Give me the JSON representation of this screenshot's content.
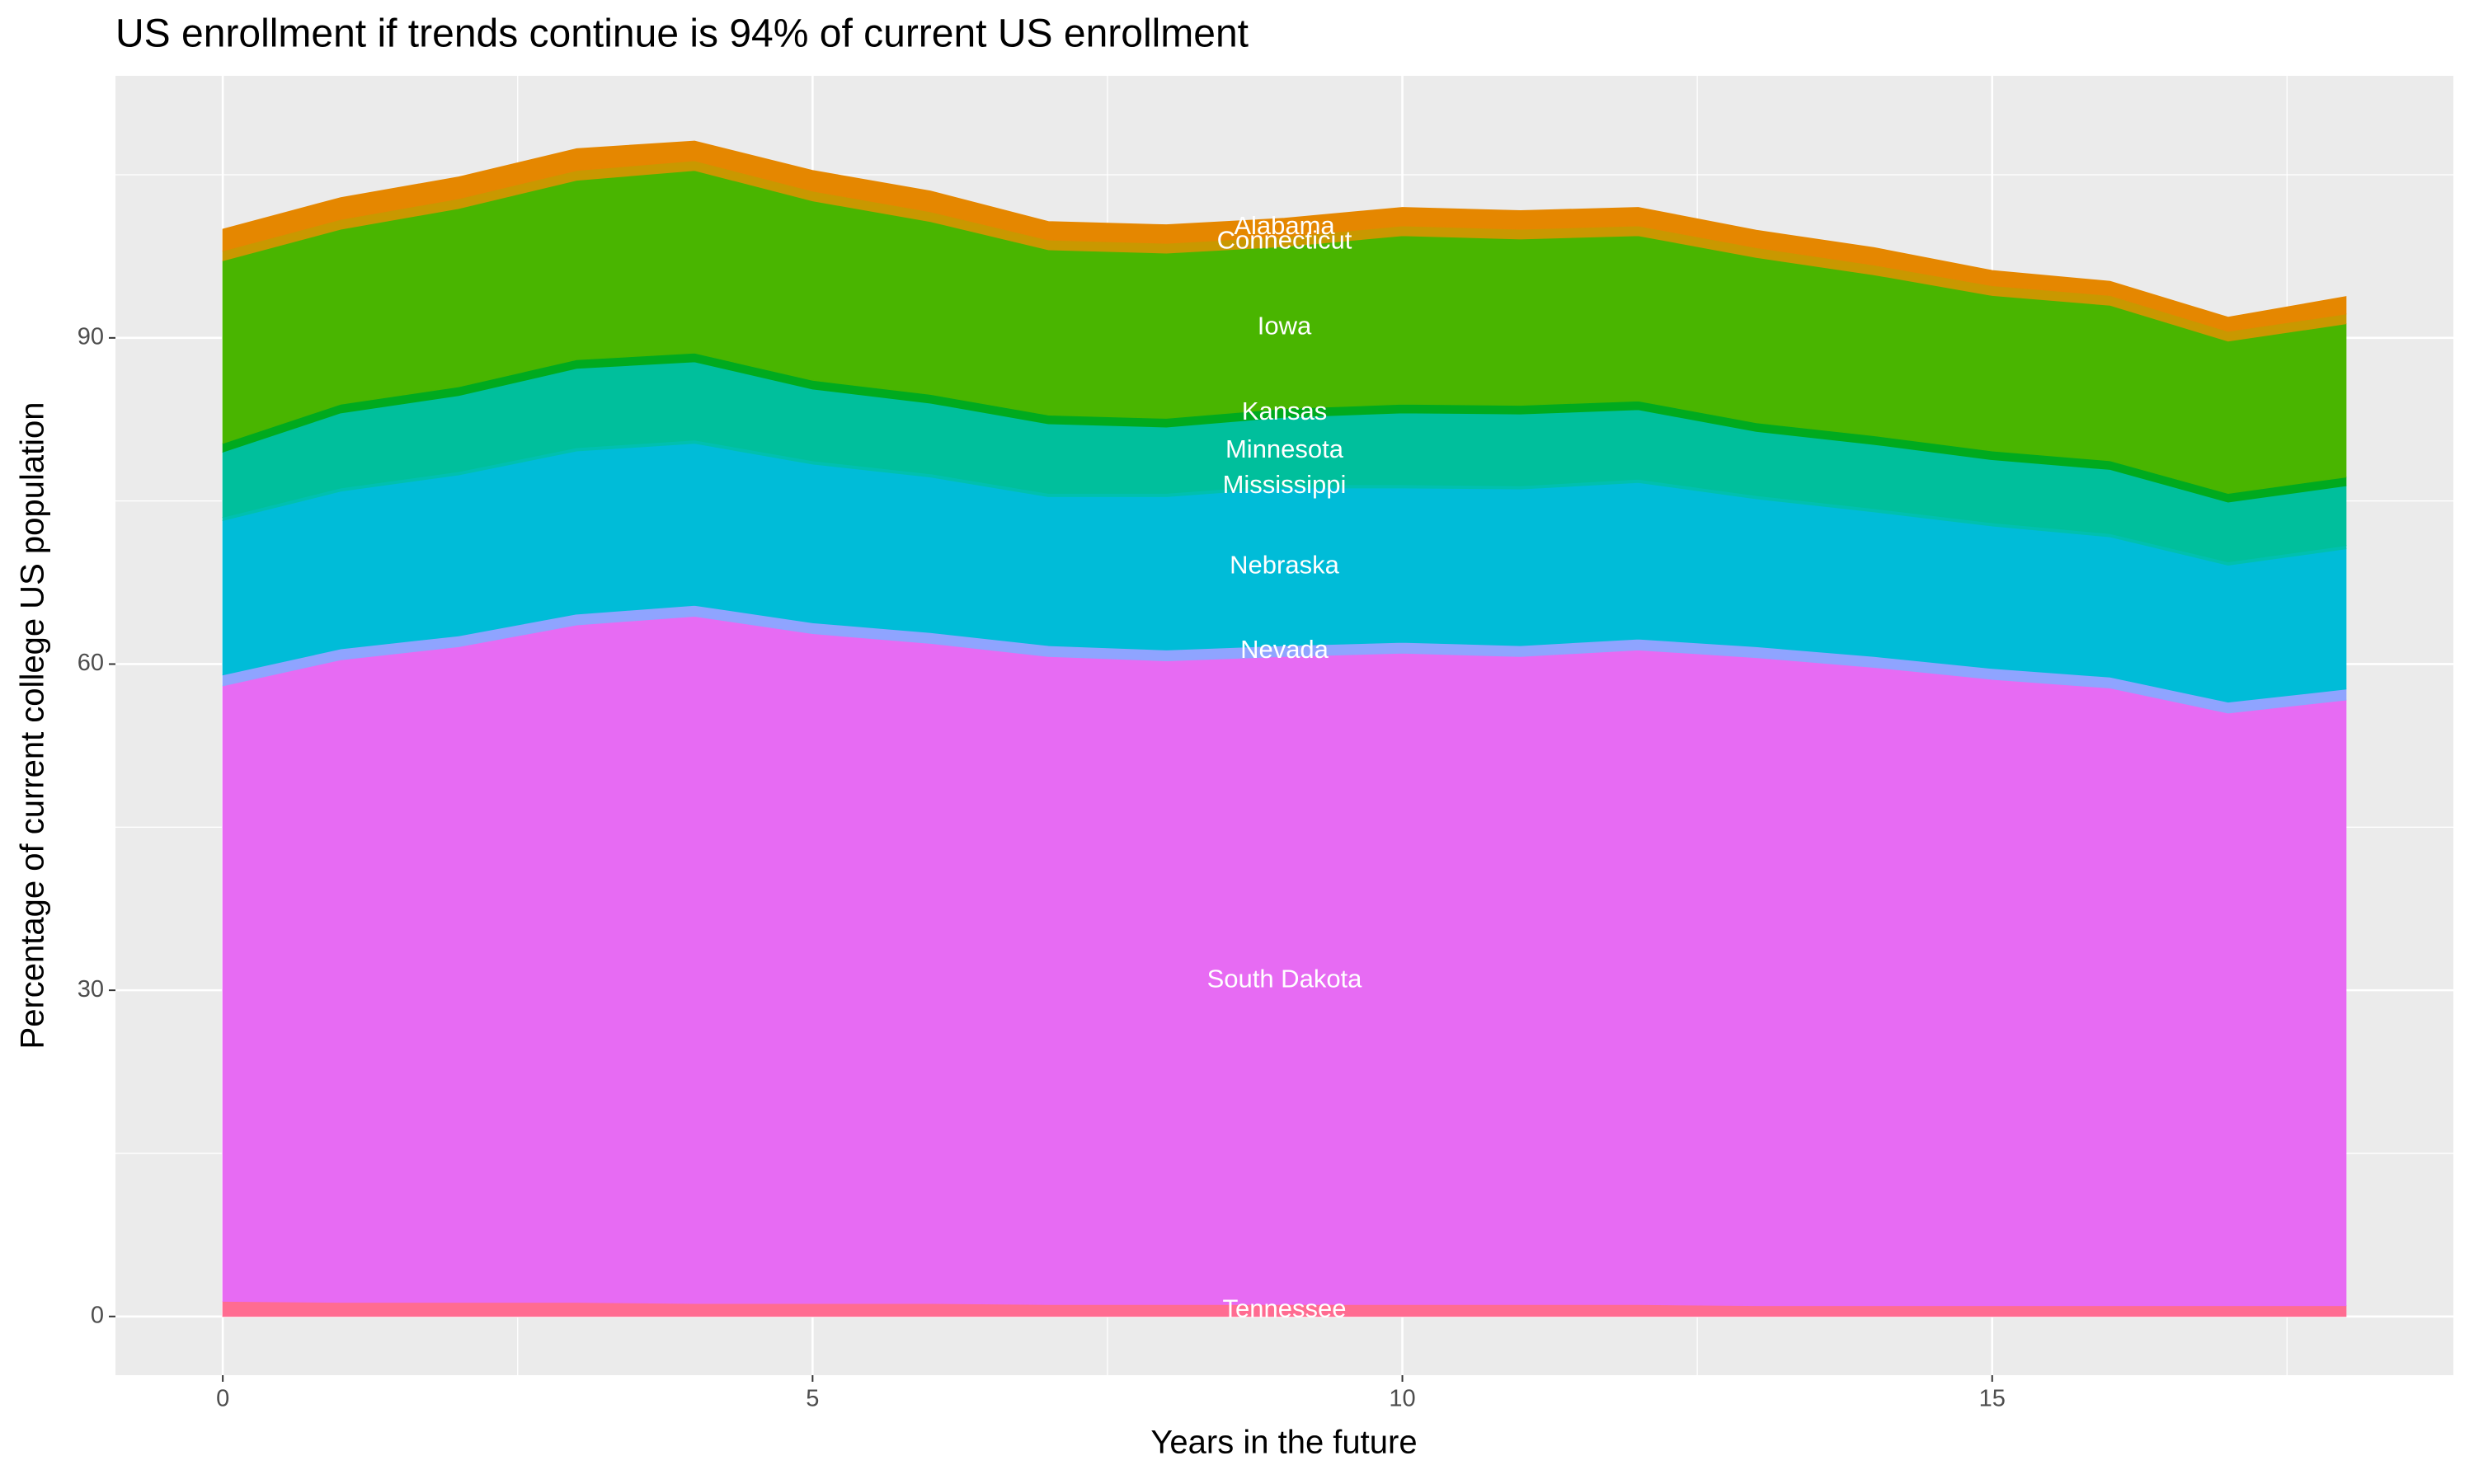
{
  "chart_data": {
    "type": "stacked_area",
    "title": "US enrollment if trends continue is 94% of current US enrollment",
    "x_label": "Years in the future",
    "y_label": "Percentage of current college US population",
    "x": [
      0,
      1,
      2,
      3,
      4,
      5,
      6,
      7,
      8,
      9,
      10,
      11,
      12,
      13,
      14,
      15,
      16,
      17,
      18
    ],
    "xlim": [
      -0.91,
      18.91
    ],
    "xticks": [
      0,
      5,
      10,
      15
    ],
    "ylim": [
      -5.4,
      114.1
    ],
    "yticks": [
      0,
      30,
      60,
      90
    ],
    "grid": true,
    "label_at_x": 9,
    "series": [
      {
        "name": "Tennessee",
        "color": "#FF6C91",
        "values": [
          1.4,
          1.3,
          1.3,
          1.3,
          1.2,
          1.2,
          1.2,
          1.1,
          1.1,
          1.1,
          1.1,
          1.1,
          1.1,
          1.0,
          1.0,
          1.0,
          1.0,
          1.0,
          1.0
        ]
      },
      {
        "name": "South Dakota",
        "color": "#E76BF3",
        "values": [
          56.6,
          59.1,
          60.3,
          62.3,
          63.2,
          61.6,
          60.7,
          59.6,
          59.2,
          59.6,
          59.9,
          59.6,
          60.2,
          59.6,
          58.7,
          57.6,
          56.8,
          54.5,
          55.7
        ]
      },
      {
        "name": "Nevada",
        "color": "#8FA4FF",
        "values": [
          1.0,
          1.0,
          1.0,
          1.0,
          1.0,
          1.0,
          1.0,
          1.0,
          1.0,
          1.0,
          1.0,
          1.0,
          1.0,
          1.0,
          1.0,
          1.0,
          1.0,
          1.0,
          1.0
        ]
      },
      {
        "name": "Nebraska",
        "color": "#00BCD8",
        "values": [
          14.2,
          14.5,
          14.8,
          15.0,
          14.9,
          14.6,
          14.3,
          13.7,
          14.1,
          14.5,
          14.2,
          14.4,
          14.4,
          13.6,
          13.3,
          13.1,
          12.9,
          12.6,
          12.9
        ]
      },
      {
        "name": "Mississippi",
        "color": "#00C0AF",
        "values": [
          0.3,
          0.3,
          0.3,
          0.3,
          0.3,
          0.3,
          0.3,
          0.3,
          0.3,
          0.3,
          0.3,
          0.3,
          0.3,
          0.3,
          0.3,
          0.3,
          0.3,
          0.3,
          0.3
        ]
      },
      {
        "name": "Minnesota",
        "color": "#00BF9C",
        "values": [
          6.0,
          6.9,
          7.0,
          7.3,
          7.2,
          6.6,
          6.5,
          6.4,
          6.1,
          6.2,
          6.6,
          6.6,
          6.4,
          5.9,
          5.9,
          5.8,
          5.9,
          5.5,
          5.5
        ]
      },
      {
        "name": "Kansas",
        "color": "#00AA1F",
        "values": [
          0.8,
          0.8,
          0.8,
          0.8,
          0.8,
          0.8,
          0.8,
          0.8,
          0.8,
          0.8,
          0.8,
          0.8,
          0.8,
          0.8,
          0.8,
          0.8,
          0.8,
          0.8,
          0.8
        ]
      },
      {
        "name": "Iowa",
        "color": "#49B500",
        "values": [
          16.8,
          16.1,
          16.4,
          16.5,
          16.8,
          16.5,
          15.9,
          15.2,
          15.2,
          14.9,
          15.5,
          15.3,
          15.2,
          15.2,
          14.8,
          14.3,
          14.3,
          14.0,
          14.1
        ]
      },
      {
        "name": "Connecticut",
        "color": "#C99800",
        "values": [
          0.9,
          0.9,
          0.9,
          0.9,
          0.9,
          0.9,
          0.9,
          0.9,
          0.9,
          0.9,
          0.9,
          0.9,
          0.9,
          0.9,
          0.9,
          0.9,
          0.9,
          0.9,
          0.9
        ]
      },
      {
        "name": "Alabama",
        "color": "#E58700",
        "values": [
          2.0,
          2.0,
          2.0,
          2.0,
          1.8,
          1.9,
          1.9,
          1.7,
          1.7,
          1.7,
          1.7,
          1.7,
          1.7,
          1.6,
          1.6,
          1.4,
          1.3,
          1.3,
          1.6
        ]
      }
    ]
  }
}
